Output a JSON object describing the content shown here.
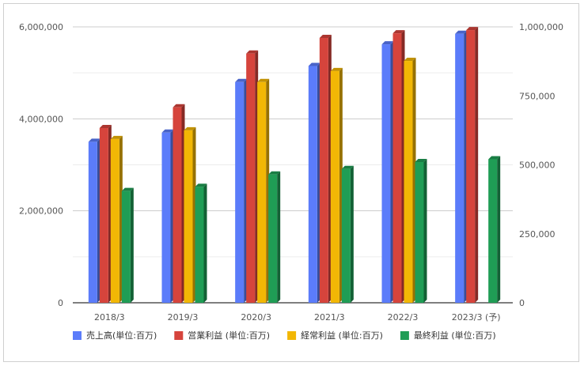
{
  "chart_data": {
    "type": "bar",
    "style": "3d-grouped",
    "categories": [
      "2018/3",
      "2019/3",
      "2020/3",
      "2021/3",
      "2022/3",
      "2023/3 (予)"
    ],
    "series": [
      {
        "name": "売上高(単位:百万)",
        "color": "#5b7cfa",
        "axis": "left",
        "values": [
          3500000,
          3700000,
          4800000,
          5150000,
          5620000,
          5850000
        ]
      },
      {
        "name": "営業利益 (単位:百万)",
        "color": "#d6443c",
        "axis": "left",
        "values": [
          3800000,
          4250000,
          5420000,
          5760000,
          5860000,
          5930000
        ]
      },
      {
        "name": "経常利益 (単位:百万)",
        "color": "#f2b705",
        "axis": "left",
        "values": [
          3560000,
          3750000,
          4800000,
          5040000,
          5260000,
          null
        ]
      },
      {
        "name": "最終利益 (単位:百万)",
        "color": "#1f9d55",
        "axis": "right",
        "values": [
          405000,
          420000,
          465000,
          485000,
          510000,
          520000
        ]
      }
    ],
    "y_left": {
      "min": 0,
      "max": 6000000,
      "ticks": [
        "0",
        "2,000,000",
        "4,000,000",
        "6,000,000"
      ]
    },
    "y_right": {
      "min": 0,
      "max": 1000000,
      "ticks": [
        "0",
        "250,000",
        "500,000",
        "750,000",
        "1,000,000"
      ]
    },
    "grid": true,
    "legend_position": "bottom"
  }
}
